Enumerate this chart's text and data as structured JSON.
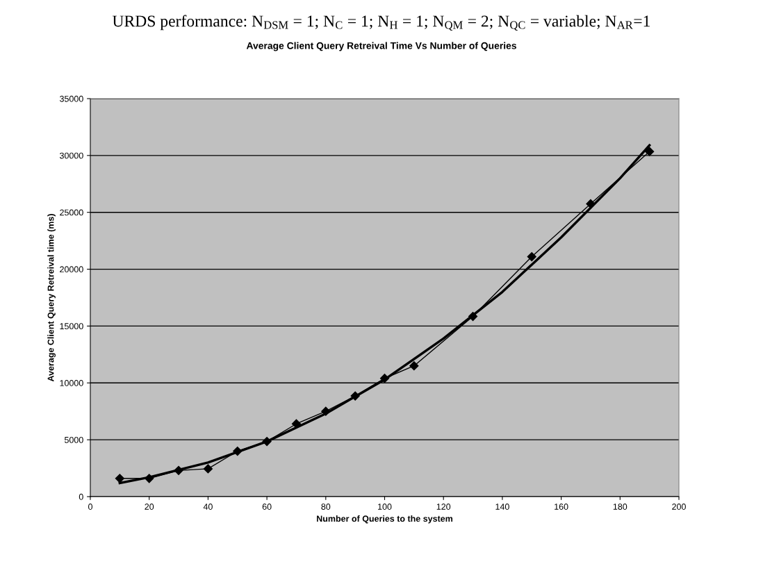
{
  "chart_data": {
    "type": "line",
    "title": "URDS performance: N$_{DSM}$ = 1; N$_{C}$ = 1; N$_{H}$ = 1; N$_{QM}$ = 2; N$_{QC}$ = variable; N$_{AR}$=1",
    "subtitle": "Average Client Query Retreival Time Vs Number of Queries",
    "xlabel": "Number of Queries to the system",
    "ylabel": "Average Client Query Retreival time (ms)",
    "x": [
      10,
      20,
      30,
      40,
      50,
      60,
      70,
      80,
      90,
      100,
      110,
      130,
      150,
      170,
      190
    ],
    "series": [
      {
        "color": "#000000",
        "marker": "diamond",
        "values": [
          1600,
          1600,
          2300,
          2450,
          4000,
          4850,
          6400,
          7500,
          8850,
          10400,
          11500,
          15850,
          21100,
          25750,
          30350
        ]
      },
      {
        "type": "line",
        "color": "#000000",
        "marker": "none",
        "x": [
          10,
          20,
          40,
          60,
          80,
          100,
          120,
          140,
          160,
          180,
          190
        ],
        "values": [
          1200,
          1700,
          3000,
          4850,
          7300,
          10300,
          13900,
          18000,
          22800,
          28000,
          30900
        ]
      }
    ],
    "xlim": [
      0,
      200
    ],
    "xticks": [
      0,
      20,
      40,
      60,
      80,
      100,
      120,
      140,
      160,
      180,
      200
    ],
    "ylim": [
      0,
      35000
    ],
    "yticks": [
      0,
      5000,
      10000,
      15000,
      20000,
      25000,
      30000,
      35000
    ],
    "grid": "y",
    "legend": false
  }
}
